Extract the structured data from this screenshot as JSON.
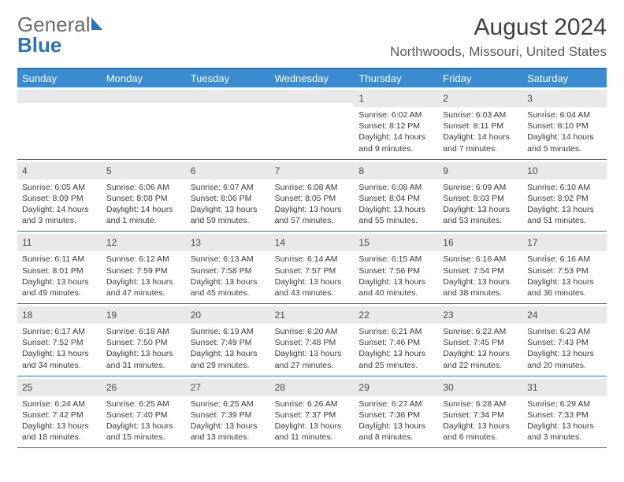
{
  "brand": {
    "part1": "General",
    "part2": "Blue"
  },
  "title": "August 2024",
  "location": "Northwoods, Missouri, United States",
  "style": {
    "accent": "#3a8bcf",
    "accent_border": "#2a74b8",
    "daynum_bg": "#e9e9e9",
    "text": "#3a3a3a",
    "title_fontsize": 30,
    "location_fontsize": 17,
    "dow_fontsize": 13,
    "daynum_fontsize": 12,
    "info_fontsize": 10.5,
    "columns": 7
  },
  "dow": [
    "Sunday",
    "Monday",
    "Tuesday",
    "Wednesday",
    "Thursday",
    "Friday",
    "Saturday"
  ],
  "weeks": [
    [
      null,
      null,
      null,
      null,
      {
        "n": "1",
        "sr": "6:02 AM",
        "ss": "8:12 PM",
        "dl": "14 hours and 9 minutes."
      },
      {
        "n": "2",
        "sr": "6:03 AM",
        "ss": "8:11 PM",
        "dl": "14 hours and 7 minutes."
      },
      {
        "n": "3",
        "sr": "6:04 AM",
        "ss": "8:10 PM",
        "dl": "14 hours and 5 minutes."
      }
    ],
    [
      {
        "n": "4",
        "sr": "6:05 AM",
        "ss": "8:09 PM",
        "dl": "14 hours and 3 minutes."
      },
      {
        "n": "5",
        "sr": "6:06 AM",
        "ss": "8:08 PM",
        "dl": "14 hours and 1 minute."
      },
      {
        "n": "6",
        "sr": "6:07 AM",
        "ss": "8:06 PM",
        "dl": "13 hours and 59 minutes."
      },
      {
        "n": "7",
        "sr": "6:08 AM",
        "ss": "8:05 PM",
        "dl": "13 hours and 57 minutes."
      },
      {
        "n": "8",
        "sr": "6:08 AM",
        "ss": "8:04 PM",
        "dl": "13 hours and 55 minutes."
      },
      {
        "n": "9",
        "sr": "6:09 AM",
        "ss": "8:03 PM",
        "dl": "13 hours and 53 minutes."
      },
      {
        "n": "10",
        "sr": "6:10 AM",
        "ss": "8:02 PM",
        "dl": "13 hours and 51 minutes."
      }
    ],
    [
      {
        "n": "11",
        "sr": "6:11 AM",
        "ss": "8:01 PM",
        "dl": "13 hours and 49 minutes."
      },
      {
        "n": "12",
        "sr": "6:12 AM",
        "ss": "7:59 PM",
        "dl": "13 hours and 47 minutes."
      },
      {
        "n": "13",
        "sr": "6:13 AM",
        "ss": "7:58 PM",
        "dl": "13 hours and 45 minutes."
      },
      {
        "n": "14",
        "sr": "6:14 AM",
        "ss": "7:57 PM",
        "dl": "13 hours and 43 minutes."
      },
      {
        "n": "15",
        "sr": "6:15 AM",
        "ss": "7:56 PM",
        "dl": "13 hours and 40 minutes."
      },
      {
        "n": "16",
        "sr": "6:16 AM",
        "ss": "7:54 PM",
        "dl": "13 hours and 38 minutes."
      },
      {
        "n": "17",
        "sr": "6:16 AM",
        "ss": "7:53 PM",
        "dl": "13 hours and 36 minutes."
      }
    ],
    [
      {
        "n": "18",
        "sr": "6:17 AM",
        "ss": "7:52 PM",
        "dl": "13 hours and 34 minutes."
      },
      {
        "n": "19",
        "sr": "6:18 AM",
        "ss": "7:50 PM",
        "dl": "13 hours and 31 minutes."
      },
      {
        "n": "20",
        "sr": "6:19 AM",
        "ss": "7:49 PM",
        "dl": "13 hours and 29 minutes."
      },
      {
        "n": "21",
        "sr": "6:20 AM",
        "ss": "7:48 PM",
        "dl": "13 hours and 27 minutes."
      },
      {
        "n": "22",
        "sr": "6:21 AM",
        "ss": "7:46 PM",
        "dl": "13 hours and 25 minutes."
      },
      {
        "n": "23",
        "sr": "6:22 AM",
        "ss": "7:45 PM",
        "dl": "13 hours and 22 minutes."
      },
      {
        "n": "24",
        "sr": "6:23 AM",
        "ss": "7:43 PM",
        "dl": "13 hours and 20 minutes."
      }
    ],
    [
      {
        "n": "25",
        "sr": "6:24 AM",
        "ss": "7:42 PM",
        "dl": "13 hours and 18 minutes."
      },
      {
        "n": "26",
        "sr": "6:25 AM",
        "ss": "7:40 PM",
        "dl": "13 hours and 15 minutes."
      },
      {
        "n": "27",
        "sr": "6:25 AM",
        "ss": "7:39 PM",
        "dl": "13 hours and 13 minutes."
      },
      {
        "n": "28",
        "sr": "6:26 AM",
        "ss": "7:37 PM",
        "dl": "13 hours and 11 minutes."
      },
      {
        "n": "29",
        "sr": "6:27 AM",
        "ss": "7:36 PM",
        "dl": "13 hours and 8 minutes."
      },
      {
        "n": "30",
        "sr": "6:28 AM",
        "ss": "7:34 PM",
        "dl": "13 hours and 6 minutes."
      },
      {
        "n": "31",
        "sr": "6:29 AM",
        "ss": "7:33 PM",
        "dl": "13 hours and 3 minutes."
      }
    ]
  ],
  "labels": {
    "sunrise": "Sunrise:",
    "sunset": "Sunset:",
    "daylight": "Daylight:"
  }
}
